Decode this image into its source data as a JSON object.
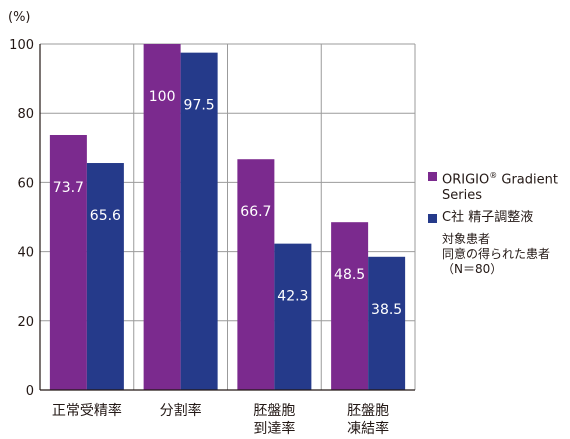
{
  "chart_data": {
    "type": "bar",
    "y_unit": "(%)",
    "ylim": [
      0,
      100
    ],
    "yticks": [
      0,
      20,
      40,
      60,
      80,
      100
    ],
    "grid": true,
    "categories": [
      [
        "正常受精率"
      ],
      [
        "分割率"
      ],
      [
        "胚盤胞",
        "到達率"
      ],
      [
        "胚盤胞",
        "凍結率"
      ]
    ],
    "series": [
      {
        "name": "ORIGIO® Gradient Series",
        "name_main": "ORIGIO",
        "name_sup": "®",
        "name_rest": " Gradient Series",
        "color": "#7b2a8e",
        "values": [
          73.7,
          100,
          66.7,
          48.5
        ],
        "labels": [
          "73.7",
          "100",
          "66.7",
          "48.5"
        ]
      },
      {
        "name": "C社 精子調整液",
        "color": "#253a8a",
        "values": [
          65.6,
          97.5,
          42.3,
          38.5
        ],
        "labels": [
          "65.6",
          "97.5",
          "42.3",
          "38.5"
        ]
      }
    ],
    "legend_position": "right",
    "note": [
      "対象患者",
      "同意の得られた患者",
      "（N＝80）"
    ]
  }
}
